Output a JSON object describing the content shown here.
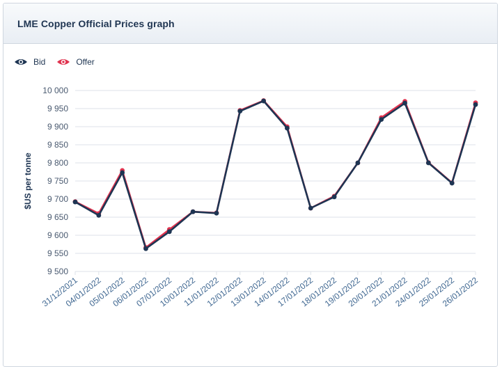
{
  "panel": {
    "title": "LME Copper Official Prices graph"
  },
  "colors": {
    "bid": "#1e3553",
    "offer": "#e0334f",
    "grid": "#dde2e8",
    "axis_text": "#4a5a70",
    "tick_text": "#3f6791"
  },
  "legend": [
    {
      "label": "Bid",
      "icon": "eye-icon",
      "color": "#1e3553"
    },
    {
      "label": "Offer",
      "icon": "eye-icon",
      "color": "#e0334f"
    }
  ],
  "chart_data": {
    "type": "line",
    "ylabel": "$US per tonne",
    "ylim": [
      9500,
      10000
    ],
    "yticks": [
      9500,
      9550,
      9600,
      9650,
      9700,
      9750,
      9800,
      9850,
      9900,
      9950,
      10000
    ],
    "ytick_labels": [
      "9 500",
      "9 550",
      "9 600",
      "9 650",
      "9 700",
      "9 750",
      "9 800",
      "9 850",
      "9 900",
      "9 950",
      "10 000"
    ],
    "grid": true,
    "legend_position": "top-left",
    "categories": [
      "31/12/2021",
      "04/01/2022",
      "05/01/2022",
      "06/01/2022",
      "07/01/2022",
      "10/01/2022",
      "11/01/2022",
      "12/01/2022",
      "13/01/2022",
      "14/01/2022",
      "17/01/2022",
      "18/01/2022",
      "19/01/2022",
      "20/01/2022",
      "21/01/2022",
      "24/01/2022",
      "25/01/2022",
      "26/01/2022"
    ],
    "series": [
      {
        "name": "Bid",
        "values": [
          9692,
          9655,
          9773,
          9563,
          9610,
          9665,
          9661,
          9943,
          9971,
          9896,
          9675,
          9706,
          9800,
          9920,
          9965,
          9800,
          9744,
          9961
        ]
      },
      {
        "name": "Offer",
        "values": [
          9693,
          9660,
          9779,
          9566,
          9616,
          9665,
          9662,
          9945,
          9972,
          9900,
          9675,
          9708,
          9800,
          9925,
          9970,
          9801,
          9745,
          9966
        ]
      }
    ]
  }
}
